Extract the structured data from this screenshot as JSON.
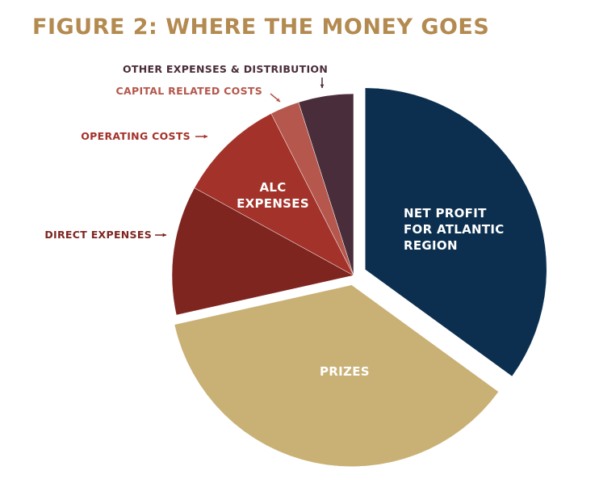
{
  "chart_data": {
    "type": "pie",
    "title": "FIGURE 2: WHERE THE MONEY GOES",
    "categories": [
      "NET PROFIT FOR ATLANTIC REGION",
      "PRIZES",
      "DIRECT EXPENSES",
      "OPERATING COSTS",
      "CAPITAL RELATED COSTS",
      "OTHER EXPENSES & DISTRIBUTION"
    ],
    "values": [
      35,
      36.5,
      11.5,
      9.5,
      2.6,
      4.9
    ],
    "colors": [
      "#0c2f4f",
      "#c9b074",
      "#7e2520",
      "#a3322a",
      "#b5574c",
      "#4a2d3a"
    ],
    "title_color": "#b38a4f",
    "annotations": [
      "ALC EXPENSES"
    ]
  }
}
